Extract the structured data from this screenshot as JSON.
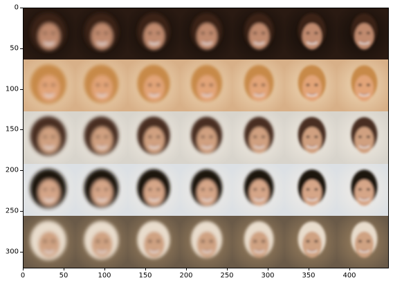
{
  "chart_data": {
    "type": "image-grid",
    "rows": 5,
    "cols": 7,
    "xlim": [
      0,
      448
    ],
    "ylim": [
      320,
      0
    ],
    "x_ticks": [
      {
        "value": 0,
        "label": "0"
      },
      {
        "value": 50,
        "label": "50"
      },
      {
        "value": 100,
        "label": "100"
      },
      {
        "value": 150,
        "label": "150"
      },
      {
        "value": 200,
        "label": "200"
      },
      {
        "value": 250,
        "label": "250"
      },
      {
        "value": 300,
        "label": "300"
      },
      {
        "value": 350,
        "label": "350"
      },
      {
        "value": 400,
        "label": "400"
      }
    ],
    "y_ticks": [
      {
        "value": 0,
        "label": "0"
      },
      {
        "value": 50,
        "label": "50"
      },
      {
        "value": 100,
        "label": "100"
      },
      {
        "value": 150,
        "label": "150"
      },
      {
        "value": 200,
        "label": "200"
      },
      {
        "value": 250,
        "label": "250"
      },
      {
        "value": 300,
        "label": "300"
      }
    ],
    "row_palettes": [
      {
        "bg": "#2a1a12",
        "skin": "#c08a6e",
        "hair": "#3a2418",
        "bg2": "#120c08"
      },
      {
        "bg": "#d8b088",
        "skin": "#e2a478",
        "hair": "#c88a48",
        "bg2": "#efd9b8"
      },
      {
        "bg": "#d8d4cc",
        "skin": "#d0a080",
        "hair": "#4a2e20",
        "bg2": "#f2ece2"
      },
      {
        "bg": "#dce0e4",
        "skin": "#d6a688",
        "hair": "#1e1410",
        "bg2": "#f4eee6"
      },
      {
        "bg": "#6a5a48",
        "skin": "#cfa282",
        "hair": "#e8dccc",
        "bg2": "#a08460"
      }
    ]
  }
}
